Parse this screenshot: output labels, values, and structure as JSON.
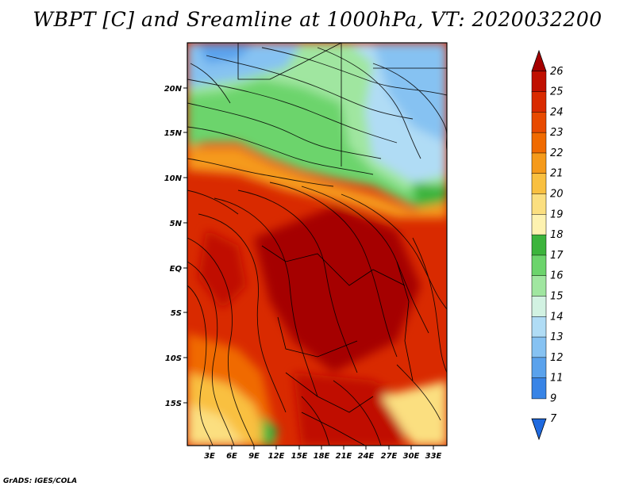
{
  "title": "WBPT [C] and Sreamline at 1000hPa, VT: 2020032200",
  "credit": "GrADS: IGES/COLA",
  "lat_labels": [
    "20N",
    "15N",
    "10N",
    "5N",
    "EQ",
    "5S",
    "10S",
    "15S"
  ],
  "lon_labels": [
    "3E",
    "6E",
    "9E",
    "12E",
    "15E",
    "18E",
    "21E",
    "24E",
    "27E",
    "30E",
    "33E"
  ],
  "colorbar": {
    "labels": [
      "26",
      "25",
      "24",
      "23",
      "22",
      "21",
      "20",
      "19",
      "18",
      "17",
      "16",
      "15",
      "14",
      "13",
      "12",
      "11",
      "9",
      "7"
    ],
    "colors": [
      "#a50000",
      "#c00f00",
      "#d92a00",
      "#e84a00",
      "#f06a00",
      "#f59a1a",
      "#f9c040",
      "#fbdf80",
      "#fdf2b0",
      "#3cb43c",
      "#6cd46c",
      "#a0e6a0",
      "#d2f2e2",
      "#b0dcf5",
      "#86c2f2",
      "#5aa2ec",
      "#3884e6",
      "#1f6ae0"
    ]
  }
}
